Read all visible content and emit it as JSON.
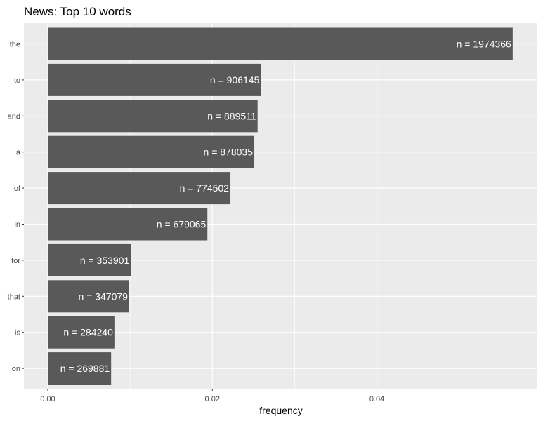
{
  "chart_data": {
    "type": "bar",
    "orientation": "horizontal",
    "title": "News: Top 10 words",
    "xlabel": "frequency",
    "ylabel": "",
    "categories": [
      "the",
      "to",
      "and",
      "a",
      "of",
      "in",
      "for",
      "that",
      "is",
      "on"
    ],
    "counts": [
      1974366,
      906145,
      889511,
      878035,
      774502,
      679065,
      353901,
      347079,
      284240,
      269881
    ],
    "bar_labels": [
      "n = 1974366",
      "n = 906145",
      "n = 889511",
      "n = 878035",
      "n = 774502",
      "n = 679065",
      "n = 353901",
      "n = 347079",
      "n = 284240",
      "n = 269881"
    ],
    "values": [
      0.0565,
      0.0259,
      0.0255,
      0.0251,
      0.0222,
      0.0194,
      0.0101,
      0.0099,
      0.0081,
      0.0077
    ],
    "xlim": [
      -0.0029,
      0.0595
    ],
    "xticks": [
      0.0,
      0.02,
      0.04
    ],
    "xtick_labels": [
      "0.00",
      "0.02",
      "0.04"
    ],
    "grid": true,
    "colors": {
      "panel_background": "#ebebeb",
      "grid_major": "#ffffff",
      "bar_fill": "#595959",
      "bar_label": "#ffffff",
      "tick_label": "#4d4d4d"
    }
  }
}
